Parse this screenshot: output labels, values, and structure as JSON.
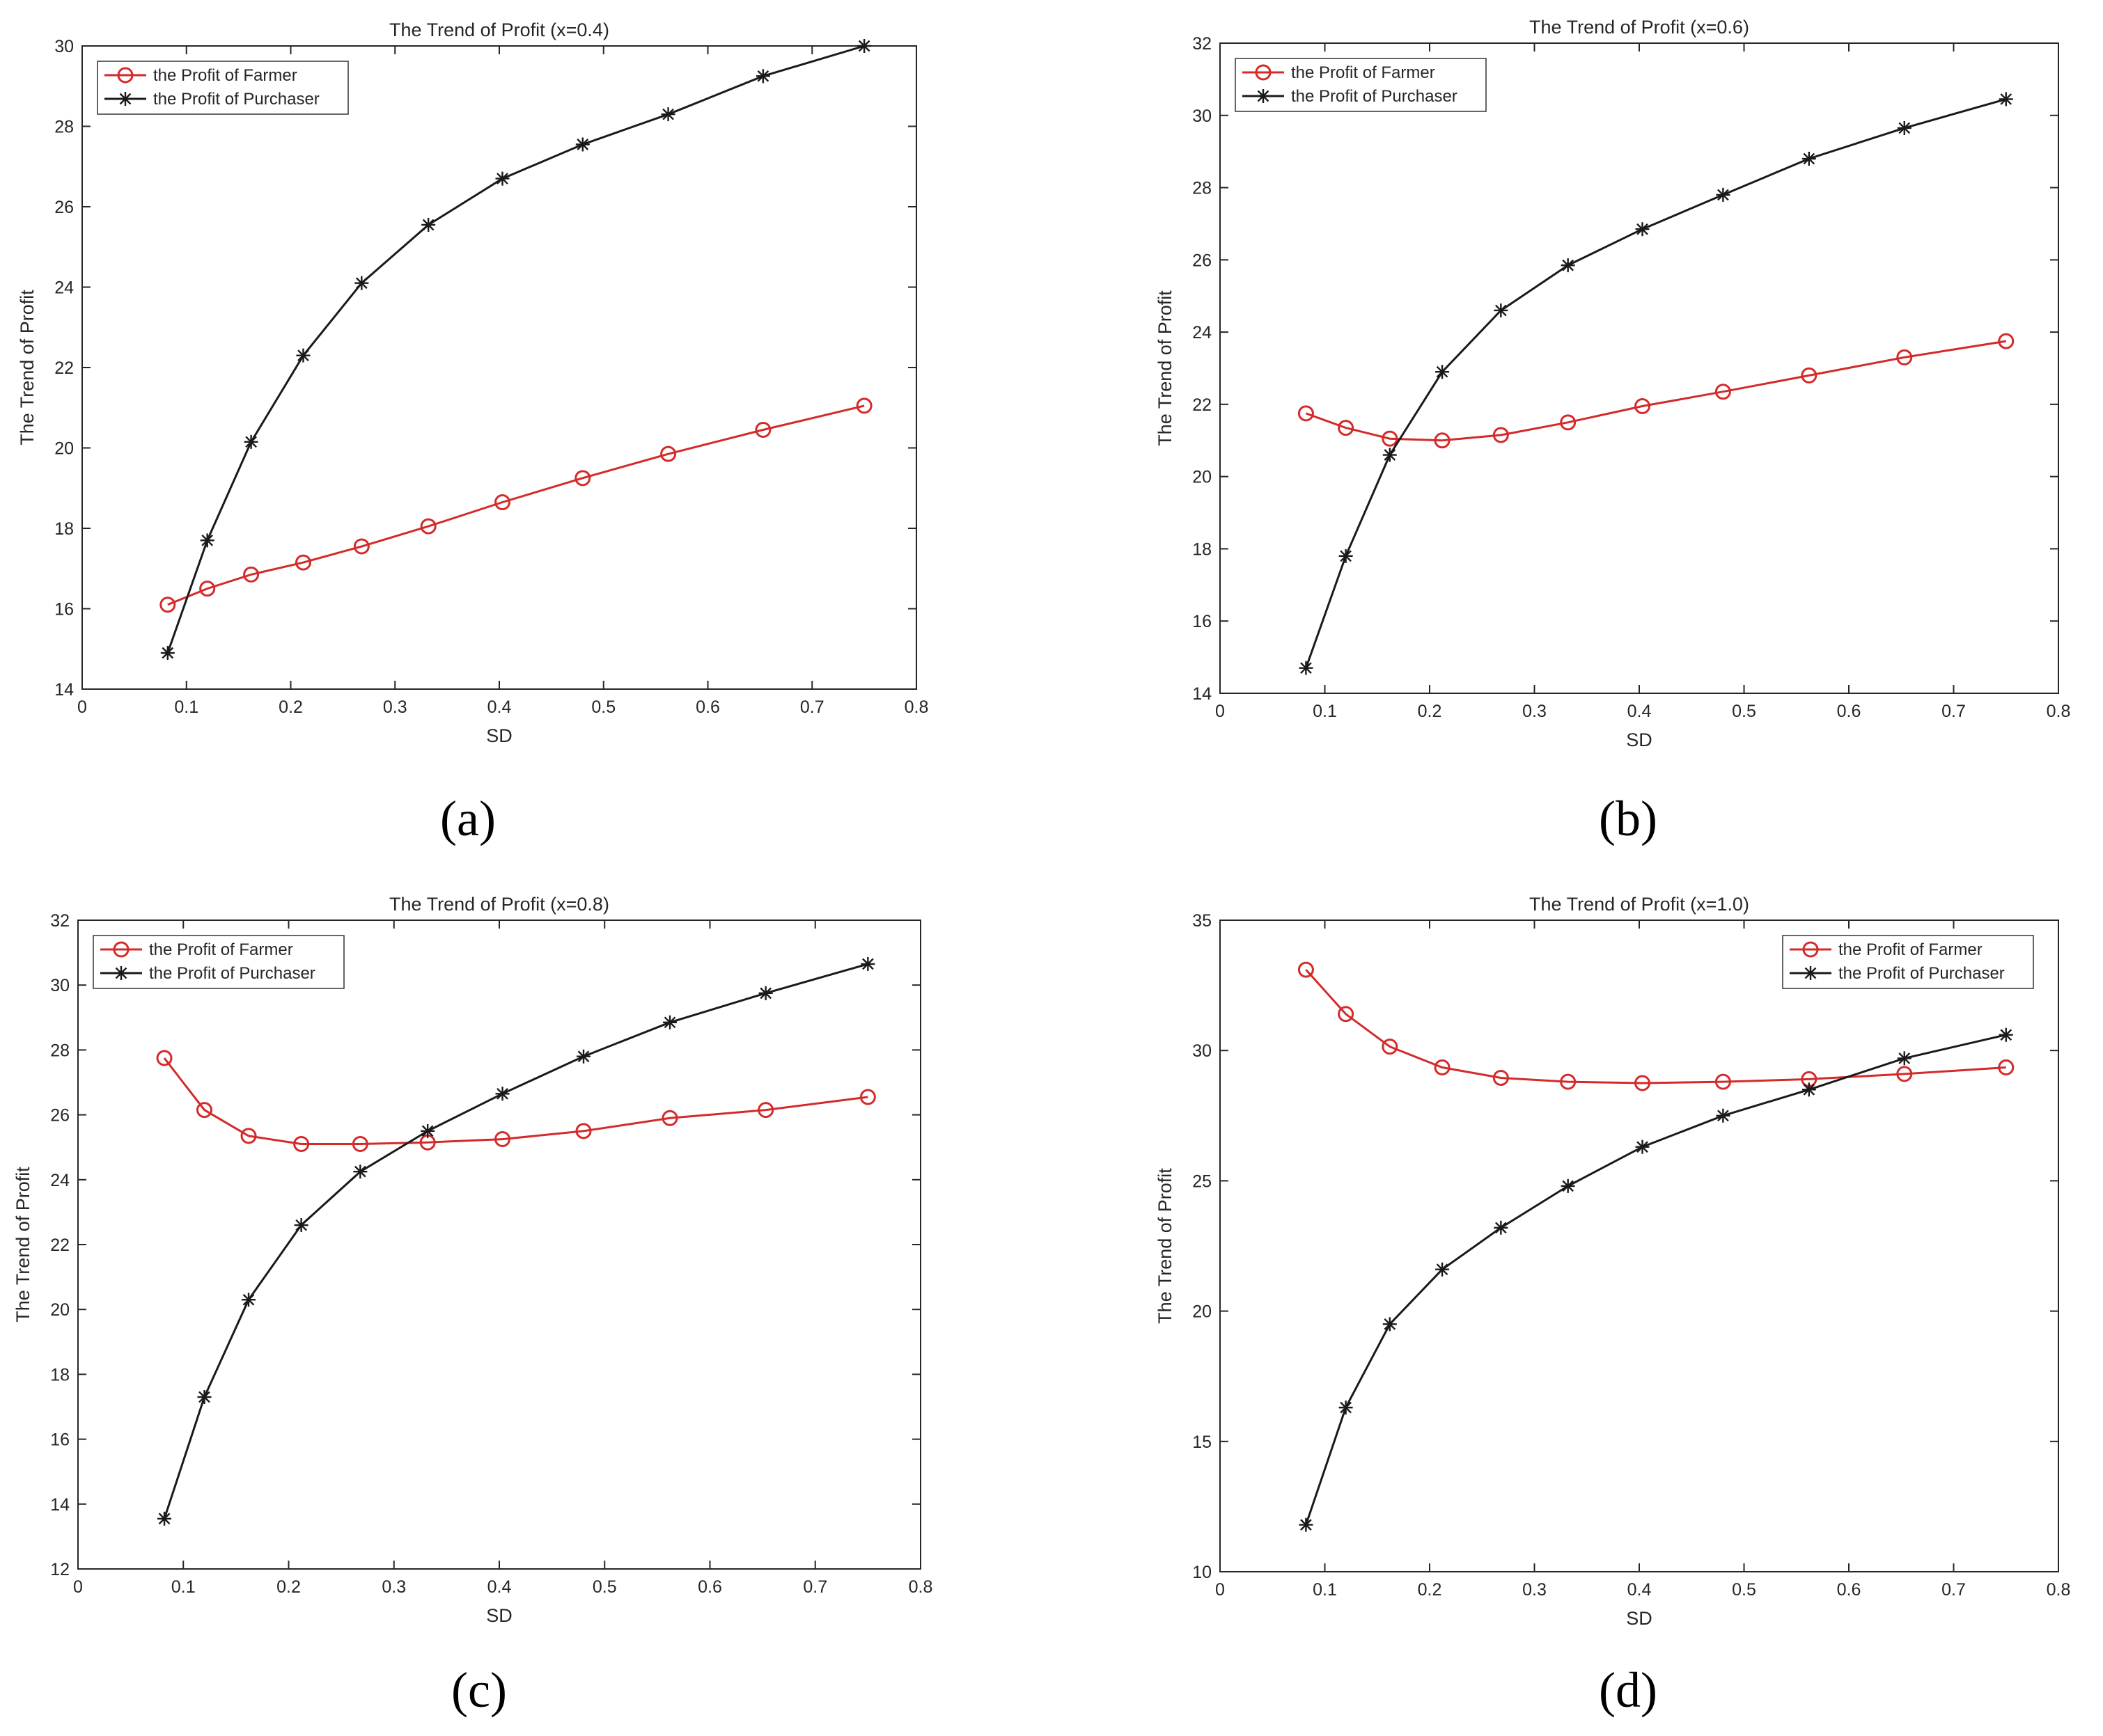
{
  "figure": {
    "captions": [
      "(a)",
      "(b)",
      "(c)",
      "(d)"
    ],
    "colors": {
      "farmer": "#d42a2a",
      "purchaser": "#1a1a1a",
      "axis": "#262626"
    }
  },
  "chart_data": [
    {
      "type": "line",
      "title": "The Trend of Profit (x=0.4)",
      "xlabel": "SD",
      "ylabel": "The Trend of Profit",
      "xlim": [
        0,
        0.8
      ],
      "ylim": [
        14,
        30
      ],
      "xticks": [
        "0",
        "0.1",
        "0.2",
        "0.3",
        "0.4",
        "0.5",
        "0.6",
        "0.7",
        "0.8"
      ],
      "yticks": [
        "14",
        "16",
        "18",
        "20",
        "22",
        "24",
        "26",
        "28",
        "30"
      ],
      "legend_position": "top-left",
      "x": [
        0.082,
        0.12,
        0.162,
        0.212,
        0.268,
        0.332,
        0.403,
        0.48,
        0.562,
        0.653,
        0.75
      ],
      "series": [
        {
          "name": "the Profit of Farmer",
          "marker": "circle",
          "values": [
            16.1,
            16.5,
            16.85,
            17.15,
            17.55,
            18.05,
            18.65,
            19.25,
            19.85,
            20.45,
            21.05
          ]
        },
        {
          "name": "the Profit of Purchaser",
          "marker": "star",
          "values": [
            14.9,
            17.7,
            20.15,
            22.3,
            24.1,
            25.55,
            26.7,
            27.55,
            28.3,
            29.25,
            30.0
          ]
        }
      ]
    },
    {
      "type": "line",
      "title": "The Trend of Profit (x=0.6)",
      "xlabel": "SD",
      "ylabel": "The Trend of Profit",
      "xlim": [
        0,
        0.8
      ],
      "ylim": [
        14,
        32
      ],
      "xticks": [
        "0",
        "0.1",
        "0.2",
        "0.3",
        "0.4",
        "0.5",
        "0.6",
        "0.7",
        "0.8"
      ],
      "yticks": [
        "14",
        "16",
        "18",
        "20",
        "22",
        "24",
        "26",
        "28",
        "30",
        "32"
      ],
      "legend_position": "top-left",
      "x": [
        0.082,
        0.12,
        0.162,
        0.212,
        0.268,
        0.332,
        0.403,
        0.48,
        0.562,
        0.653,
        0.75
      ],
      "series": [
        {
          "name": "the Profit of Farmer",
          "marker": "circle",
          "values": [
            21.75,
            21.35,
            21.05,
            21.0,
            21.15,
            21.5,
            21.95,
            22.35,
            22.8,
            23.3,
            23.75
          ]
        },
        {
          "name": "the Profit of Purchaser",
          "marker": "star",
          "values": [
            14.7,
            17.8,
            20.6,
            22.9,
            24.6,
            25.85,
            26.85,
            27.8,
            28.8,
            29.65,
            30.45
          ]
        }
      ]
    },
    {
      "type": "line",
      "title": "The Trend of Profit (x=0.8)",
      "xlabel": "SD",
      "ylabel": "The Trend of Profit",
      "xlim": [
        0,
        0.8
      ],
      "ylim": [
        12,
        32
      ],
      "xticks": [
        "0",
        "0.1",
        "0.2",
        "0.3",
        "0.4",
        "0.5",
        "0.6",
        "0.7",
        "0.8"
      ],
      "yticks": [
        "12",
        "14",
        "16",
        "18",
        "20",
        "22",
        "24",
        "26",
        "28",
        "30",
        "32"
      ],
      "legend_position": "top-left",
      "x": [
        0.082,
        0.12,
        0.162,
        0.212,
        0.268,
        0.332,
        0.403,
        0.48,
        0.562,
        0.653,
        0.75
      ],
      "series": [
        {
          "name": "the Profit of Farmer",
          "marker": "circle",
          "values": [
            27.75,
            26.15,
            25.35,
            25.1,
            25.1,
            25.15,
            25.25,
            25.5,
            25.9,
            26.15,
            26.55
          ]
        },
        {
          "name": "the Profit of Purchaser",
          "marker": "star",
          "values": [
            13.55,
            17.3,
            20.3,
            22.6,
            24.25,
            25.5,
            26.65,
            27.8,
            28.85,
            29.75,
            30.65
          ]
        }
      ]
    },
    {
      "type": "line",
      "title": "The Trend of Profit (x=1.0)",
      "xlabel": "SD",
      "ylabel": "The Trend of Profit",
      "xlim": [
        0,
        0.8
      ],
      "ylim": [
        10,
        35
      ],
      "xticks": [
        "0",
        "0.1",
        "0.2",
        "0.3",
        "0.4",
        "0.5",
        "0.6",
        "0.7",
        "0.8"
      ],
      "yticks": [
        "10",
        "15",
        "20",
        "25",
        "30",
        "35"
      ],
      "legend_position": "top-right",
      "x": [
        0.082,
        0.12,
        0.162,
        0.212,
        0.268,
        0.332,
        0.403,
        0.48,
        0.562,
        0.653,
        0.75
      ],
      "series": [
        {
          "name": "the Profit of Farmer",
          "marker": "circle",
          "values": [
            33.1,
            31.4,
            30.15,
            29.35,
            28.95,
            28.8,
            28.75,
            28.8,
            28.9,
            29.1,
            29.35
          ]
        },
        {
          "name": "the Profit of Purchaser",
          "marker": "star",
          "values": [
            11.8,
            16.3,
            19.5,
            21.6,
            23.2,
            24.8,
            26.3,
            27.5,
            28.5,
            29.7,
            30.6
          ]
        }
      ]
    }
  ]
}
